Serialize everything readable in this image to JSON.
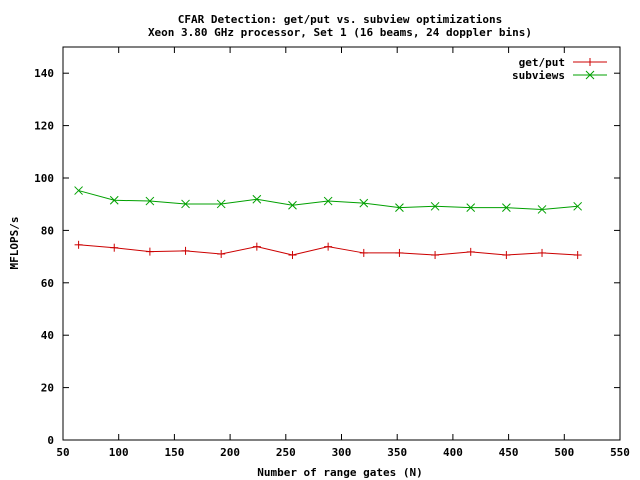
{
  "chart_data": {
    "type": "line",
    "title": "CFAR Detection: get/put vs. subview optimizations",
    "subtitle": "Xeon 3.80 GHz processor, Set 1 (16 beams, 24 doppler bins)",
    "xlabel": "Number of range gates (N)",
    "ylabel": "MFLOPS/s",
    "xlim": [
      50,
      550
    ],
    "ylim": [
      0,
      150
    ],
    "xticks": [
      "50",
      "100",
      "150",
      "200",
      "250",
      "300",
      "350",
      "400",
      "450",
      "500",
      "550"
    ],
    "yticks": [
      "0",
      "20",
      "40",
      "60",
      "80",
      "100",
      "120",
      "140"
    ],
    "grid": false,
    "legend_position": "top-right",
    "x": [
      64,
      96,
      128,
      160,
      192,
      224,
      256,
      288,
      320,
      352,
      384,
      416,
      448,
      480,
      512
    ],
    "series": [
      {
        "name": "get/put",
        "color": "#cc0000",
        "marker": "plus",
        "values": [
          74.5,
          73.4,
          71.9,
          72.2,
          71.0,
          73.8,
          70.6,
          73.8,
          71.4,
          71.4,
          70.6,
          71.8,
          70.6,
          71.4,
          70.6
        ]
      },
      {
        "name": "subviews",
        "color": "#00a000",
        "marker": "cross",
        "values": [
          95.2,
          91.5,
          91.2,
          90.1,
          90.1,
          91.9,
          89.6,
          91.2,
          90.4,
          88.7,
          89.2,
          88.7,
          88.7,
          88.0,
          89.2
        ]
      }
    ]
  }
}
